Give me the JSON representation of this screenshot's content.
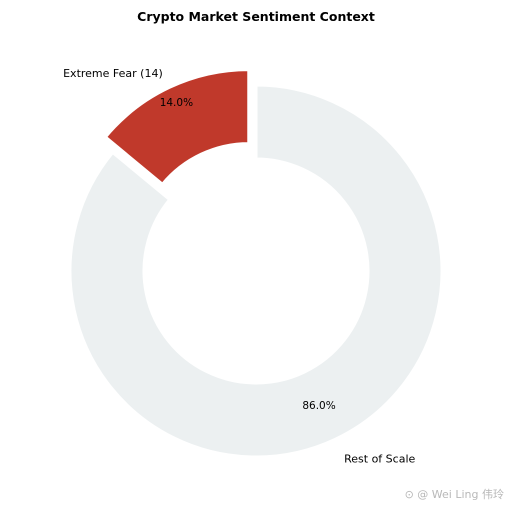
{
  "chart_data": {
    "type": "pie",
    "title": "Crypto Market Sentiment Context",
    "slices": [
      {
        "label": "Extreme Fear (14)",
        "value": 14.0,
        "pct_label": "14.0%",
        "color": "#c0392b",
        "exploded": true
      },
      {
        "label": "Rest of Scale",
        "value": 86.0,
        "pct_label": "86.0%",
        "color": "#ecf0f1",
        "exploded": false
      }
    ],
    "donut": true,
    "legend": "none"
  },
  "watermark": "⊙ @ Wei Ling 伟玲"
}
